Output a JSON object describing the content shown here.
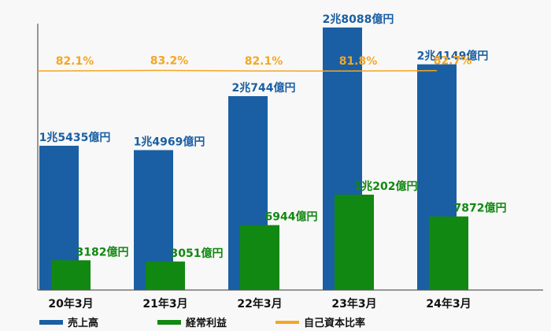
{
  "chart_data": {
    "type": "bar",
    "categories": [
      "20年3月",
      "21年3月",
      "22年3月",
      "23年3月",
      "24年3月"
    ],
    "series": [
      {
        "name": "売上高",
        "kind": "bar",
        "color": "#1a5fa3",
        "label_color": "#1a5fa3",
        "values": [
          15435,
          14969,
          20744,
          28088,
          24149
        ],
        "labels": [
          "1兆5435億円",
          "1兆4969億円",
          "2兆744億円",
          "2兆8088億円",
          "2兆4149億円"
        ]
      },
      {
        "name": "経常利益",
        "kind": "bar",
        "color": "#118811",
        "label_color": "#118811",
        "values": [
          3182,
          3051,
          6944,
          10202,
          7872
        ],
        "labels": [
          "3182億円",
          "3051億円",
          "6944億円",
          "1兆202億円",
          "7872億円"
        ]
      },
      {
        "name": "自己資本比率",
        "kind": "line",
        "color": "#f5a623",
        "label_color": "#f5a623",
        "values": [
          82.1,
          83.2,
          82.1,
          81.8,
          82.7
        ],
        "labels": [
          "82.1%",
          "83.2%",
          "82.1%",
          "81.8%",
          "82.7%"
        ]
      }
    ],
    "ylim": [
      0,
      28500
    ],
    "legend_position": "bottom-left"
  }
}
